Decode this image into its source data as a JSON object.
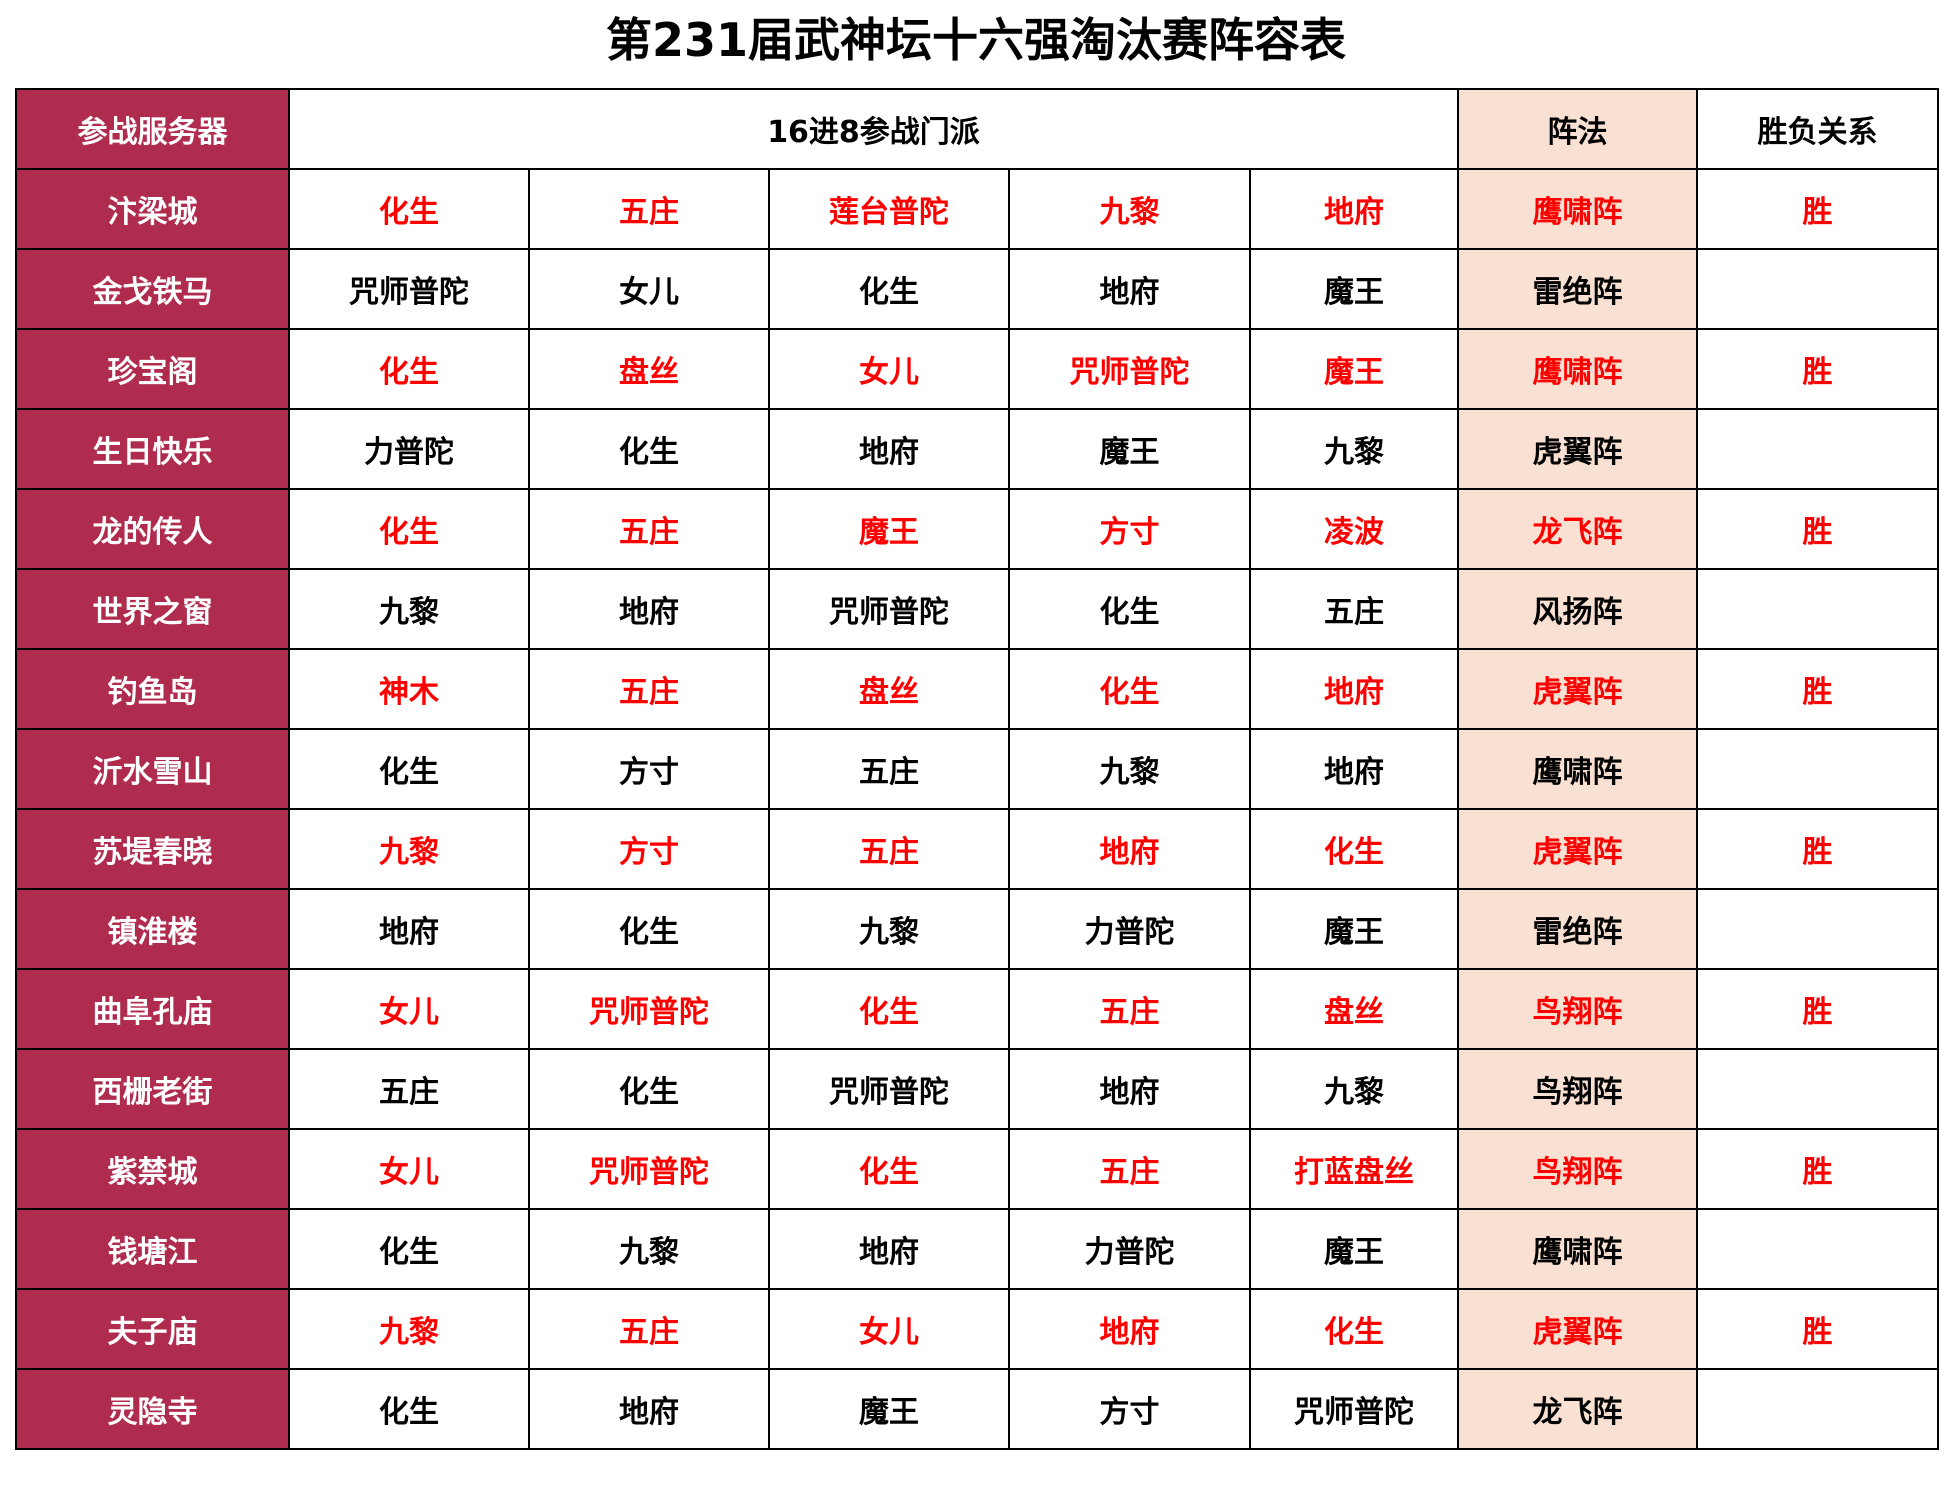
{
  "title": "第231届武神坛十六强淘汰赛阵容表",
  "header": {
    "server": "参战服务器",
    "factions": "16进8参战门派",
    "formation": "阵法",
    "result": "胜负关系"
  },
  "rows": [
    {
      "server": "汴梁城",
      "factions": [
        "化生",
        "五庄",
        "莲台普陀",
        "九黎",
        "地府"
      ],
      "formation": "鹰啸阵",
      "result": "胜"
    },
    {
      "server": "金戈铁马",
      "factions": [
        "咒师普陀",
        "女儿",
        "化生",
        "地府",
        "魔王"
      ],
      "formation": "雷绝阵"
    },
    {
      "server": "珍宝阁",
      "factions": [
        "化生",
        "盘丝",
        "女儿",
        "咒师普陀",
        "魔王"
      ],
      "formation": "鹰啸阵",
      "result": "胜"
    },
    {
      "server": "生日快乐",
      "factions": [
        "力普陀",
        "化生",
        "地府",
        "魔王",
        "九黎"
      ],
      "formation": "虎翼阵"
    },
    {
      "server": "龙的传人",
      "factions": [
        "化生",
        "五庄",
        "魔王",
        "方寸",
        "凌波"
      ],
      "formation": "龙飞阵",
      "result": "胜"
    },
    {
      "server": "世界之窗",
      "factions": [
        "九黎",
        "地府",
        "咒师普陀",
        "化生",
        "五庄"
      ],
      "formation": "风扬阵"
    },
    {
      "server": "钓鱼岛",
      "factions": [
        "神木",
        "五庄",
        "盘丝",
        "化生",
        "地府"
      ],
      "formation": "虎翼阵",
      "result": "胜"
    },
    {
      "server": "沂水雪山",
      "factions": [
        "化生",
        "方寸",
        "五庄",
        "九黎",
        "地府"
      ],
      "formation": "鹰啸阵"
    },
    {
      "server": "苏堤春晓",
      "factions": [
        "九黎",
        "方寸",
        "五庄",
        "地府",
        "化生"
      ],
      "formation": "虎翼阵",
      "result": "胜"
    },
    {
      "server": "镇淮楼",
      "factions": [
        "地府",
        "化生",
        "九黎",
        "力普陀",
        "魔王"
      ],
      "formation": "雷绝阵"
    },
    {
      "server": "曲阜孔庙",
      "factions": [
        "女儿",
        "咒师普陀",
        "化生",
        "五庄",
        "盘丝"
      ],
      "formation": "鸟翔阵",
      "result": "胜"
    },
    {
      "server": "西栅老街",
      "factions": [
        "五庄",
        "化生",
        "咒师普陀",
        "地府",
        "九黎"
      ],
      "formation": "鸟翔阵"
    },
    {
      "server": "紫禁城",
      "factions": [
        "女儿",
        "咒师普陀",
        "化生",
        "五庄",
        "打蓝盘丝"
      ],
      "formation": "鸟翔阵",
      "result": "胜"
    },
    {
      "server": "钱塘江",
      "factions": [
        "化生",
        "九黎",
        "地府",
        "力普陀",
        "魔王"
      ],
      "formation": "鹰啸阵"
    },
    {
      "server": "夫子庙",
      "factions": [
        "九黎",
        "五庄",
        "女儿",
        "地府",
        "化生"
      ],
      "formation": "虎翼阵",
      "result": "胜"
    },
    {
      "server": "灵隐寺",
      "factions": [
        "化生",
        "地府",
        "魔王",
        "方寸",
        "咒师普陀"
      ],
      "formation": "龙飞阵"
    }
  ]
}
